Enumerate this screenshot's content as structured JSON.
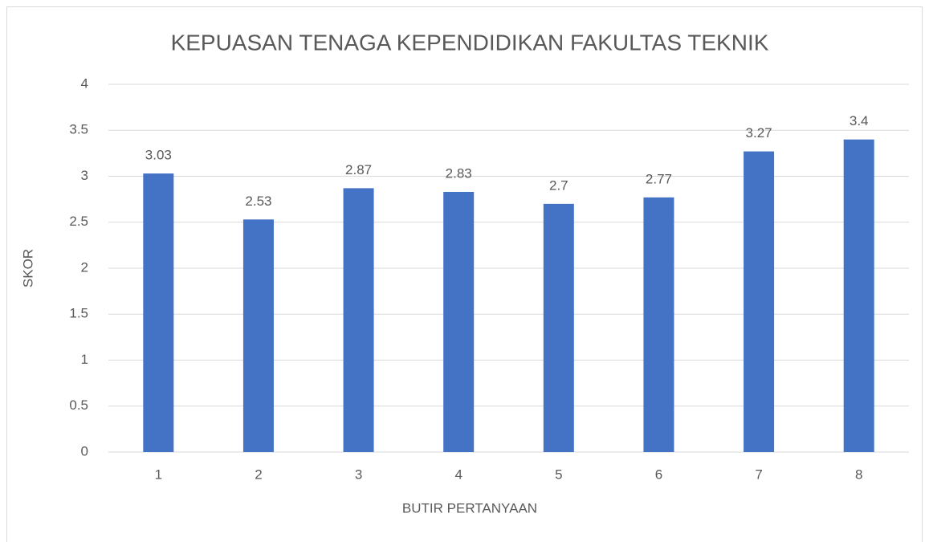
{
  "chart_data": {
    "type": "bar",
    "title": "KEPUASAN TENAGA KEPENDIDIKAN FAKULTAS TEKNIK",
    "x_label": "BUTIR PERTANYAAN",
    "y_label": "SKOR",
    "categories": [
      "1",
      "2",
      "3",
      "4",
      "5",
      "6",
      "7",
      "8"
    ],
    "values": [
      3.03,
      2.53,
      2.87,
      2.83,
      2.7,
      2.77,
      3.27,
      3.4
    ],
    "color": "#4472c4",
    "ylim": [
      0,
      4
    ],
    "yticks": [
      0,
      0.5,
      1,
      1.5,
      2,
      2.5,
      3,
      3.5,
      4
    ],
    "grid": true
  }
}
